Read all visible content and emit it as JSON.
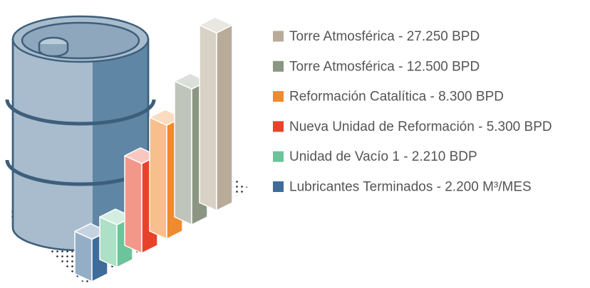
{
  "chart_data": {
    "type": "bar",
    "log_scale": true,
    "ylim": [
      1000,
      30000
    ],
    "series": [
      {
        "name": "Torre Atmosférica - 27.250 BPD",
        "color": "#b8ab98",
        "values": [
          27250
        ]
      },
      {
        "name": "Torre Atmosférica - 12.500 BPD",
        "color": "#8a9682",
        "values": [
          12500
        ]
      },
      {
        "name": "Reformación Catalítica - 8.300 BPD",
        "color": "#f08a2e",
        "values": [
          8300
        ]
      },
      {
        "name": "Nueva Unidad de Reformación - 5.300 BPD",
        "color": "#e8432a",
        "values": [
          5300
        ]
      },
      {
        "name": "Unidad de Vacío 1 - 2.210 BDP",
        "color": "#6cc49a",
        "values": [
          2210
        ]
      },
      {
        "name": "Lubricantes Terminados - 2.200 M³/MES",
        "color": "#3f6c9a",
        "values": [
          2200
        ]
      }
    ]
  }
}
